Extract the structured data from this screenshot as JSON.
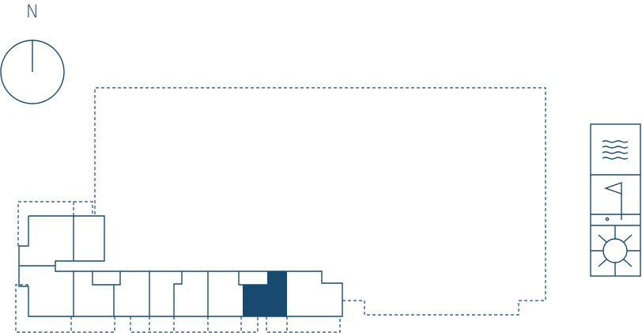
{
  "compass": {
    "label": "N"
  },
  "colors": {
    "line": "#184a70",
    "highlight": "#184a70",
    "background": "#ffffff"
  },
  "legend": {
    "icons": [
      "water-waves-icon",
      "golf-flag-icon",
      "sun-icon"
    ]
  },
  "highlighted_unit": {
    "state": "selected"
  }
}
